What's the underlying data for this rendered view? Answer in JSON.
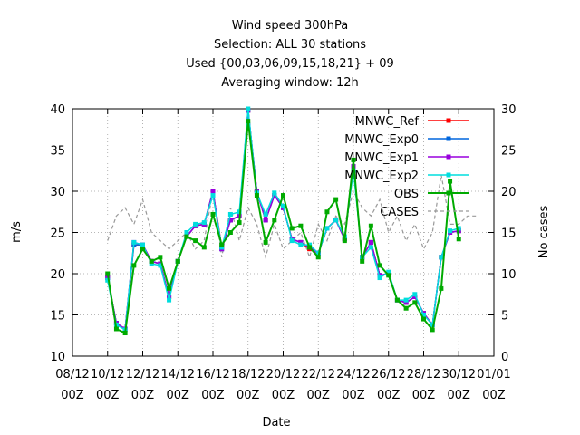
{
  "chart_data": {
    "type": "line",
    "title_lines": [
      "Wind speed 300hPa",
      "Selection: ALL      30 stations",
      "Used {00,03,06,09,15,18,21} + 09",
      "Averaging window: 12h"
    ],
    "xlabel": "Date",
    "ylabel": "m/s",
    "y2label": "No cases",
    "x_ticks": [
      {
        "top": "08/12",
        "bottom": "00Z"
      },
      {
        "top": "10/12",
        "bottom": "00Z"
      },
      {
        "top": "12/12",
        "bottom": "00Z"
      },
      {
        "top": "14/12",
        "bottom": "00Z"
      },
      {
        "top": "16/12",
        "bottom": "00Z"
      },
      {
        "top": "18/12",
        "bottom": "00Z"
      },
      {
        "top": "20/12",
        "bottom": "00Z"
      },
      {
        "top": "22/12",
        "bottom": "00Z"
      },
      {
        "top": "24/12",
        "bottom": "00Z"
      },
      {
        "top": "26/12",
        "bottom": "00Z"
      },
      {
        "top": "28/12",
        "bottom": "00Z"
      },
      {
        "top": "30/12",
        "bottom": "00Z"
      },
      {
        "top": "01/01",
        "bottom": "00Z"
      }
    ],
    "xlim_days": [
      0,
      24
    ],
    "ylim": [
      10,
      40
    ],
    "yticks": [
      10,
      15,
      20,
      25,
      30,
      35,
      40
    ],
    "y2lim": [
      0,
      30
    ],
    "y2ticks": [
      0,
      5,
      10,
      15,
      20,
      25,
      30
    ],
    "legend_position": "top-right",
    "x_days": [
      2.0,
      2.5,
      3.0,
      3.5,
      4.0,
      4.5,
      5.0,
      5.5,
      6.0,
      6.5,
      7.0,
      7.5,
      8.0,
      8.5,
      9.0,
      9.5,
      10.0,
      10.5,
      11.0,
      11.5,
      12.0,
      12.5,
      13.0,
      13.5,
      14.0,
      14.5,
      15.0,
      15.5,
      16.0,
      16.5,
      17.0,
      17.5,
      18.0,
      18.5,
      19.0,
      19.5,
      20.0,
      20.5,
      21.0,
      21.5,
      22.0,
      22.5,
      23.0
    ],
    "series": [
      {
        "name": "MNWC_Ref",
        "color": "#ff0000",
        "axis": "y1",
        "values": [
          19.5,
          14.0,
          13.3,
          23.5,
          23.5,
          21.5,
          21.2,
          17.2,
          21.5,
          24.5,
          25.8,
          26.0,
          30.0,
          23.2,
          26.5,
          27.0,
          39.8,
          30.0,
          26.5,
          29.5,
          28.0,
          24.2,
          23.8,
          23.0,
          22.5,
          25.5,
          26.5,
          24.2,
          33.0,
          22.0,
          23.8,
          19.8,
          20.0,
          16.8,
          16.5,
          17.2,
          15.2,
          13.8,
          22.0,
          25.0,
          25.2,
          null,
          null
        ]
      },
      {
        "name": "MNWC_Exp0",
        "color": "#0066dd",
        "axis": "y1",
        "values": [
          19.5,
          14.0,
          13.3,
          23.5,
          23.5,
          21.5,
          21.2,
          17.2,
          21.5,
          24.5,
          25.8,
          26.0,
          30.0,
          23.0,
          26.5,
          27.0,
          39.8,
          30.0,
          26.5,
          29.5,
          28.0,
          24.2,
          23.8,
          23.2,
          22.5,
          25.5,
          26.5,
          24.2,
          33.0,
          22.0,
          23.8,
          19.8,
          20.0,
          16.8,
          16.5,
          17.2,
          15.2,
          13.8,
          22.0,
          25.0,
          25.2,
          null,
          null
        ]
      },
      {
        "name": "MNWC_Exp1",
        "color": "#9900dd",
        "axis": "y1",
        "values": [
          19.5,
          14.0,
          13.3,
          23.8,
          23.5,
          21.5,
          21.2,
          17.2,
          21.5,
          24.5,
          25.8,
          26.0,
          30.0,
          23.0,
          26.5,
          27.0,
          39.8,
          30.0,
          26.5,
          29.5,
          28.0,
          24.2,
          23.8,
          23.2,
          22.5,
          25.5,
          26.5,
          24.2,
          33.0,
          22.0,
          23.8,
          19.8,
          20.0,
          16.8,
          16.5,
          17.2,
          15.2,
          13.8,
          22.0,
          25.0,
          25.2,
          null,
          null
        ]
      },
      {
        "name": "MNWC_Exp2",
        "color": "#00dddd",
        "axis": "y1",
        "values": [
          19.2,
          13.8,
          13.2,
          23.8,
          23.5,
          21.2,
          21.0,
          16.8,
          21.5,
          25.0,
          26.0,
          26.2,
          29.5,
          23.2,
          27.2,
          27.5,
          40.0,
          29.8,
          27.2,
          29.8,
          28.2,
          24.0,
          23.5,
          23.5,
          22.5,
          25.5,
          26.5,
          24.5,
          32.5,
          22.0,
          23.2,
          19.5,
          20.2,
          16.8,
          16.8,
          17.5,
          15.0,
          13.8,
          22.0,
          25.2,
          25.5,
          null,
          null
        ]
      },
      {
        "name": "OBS",
        "color": "#00aa00",
        "axis": "y1",
        "values": [
          20.0,
          13.3,
          12.8,
          21.0,
          23.0,
          21.5,
          22.0,
          18.2,
          21.5,
          24.5,
          24.0,
          23.2,
          27.2,
          23.5,
          25.0,
          26.2,
          38.5,
          29.5,
          23.8,
          26.5,
          29.5,
          25.5,
          25.8,
          23.2,
          22.0,
          27.5,
          29.0,
          24.0,
          33.8,
          21.5,
          25.8,
          21.0,
          19.8,
          16.8,
          15.8,
          16.5,
          14.5,
          13.2,
          18.2,
          31.2,
          24.2,
          null,
          null
        ]
      },
      {
        "name": "CASES",
        "color": "#999999",
        "axis": "y2",
        "values": [
          14,
          17,
          18,
          16,
          19,
          15,
          14,
          13,
          14,
          15,
          13,
          14,
          20,
          12,
          18,
          14,
          18,
          16,
          12,
          16,
          13,
          14,
          15,
          12,
          16,
          14,
          17,
          16,
          20,
          18,
          17,
          19,
          15,
          17,
          14,
          16,
          13,
          15,
          22,
          16,
          16,
          17,
          17
        ]
      }
    ]
  }
}
